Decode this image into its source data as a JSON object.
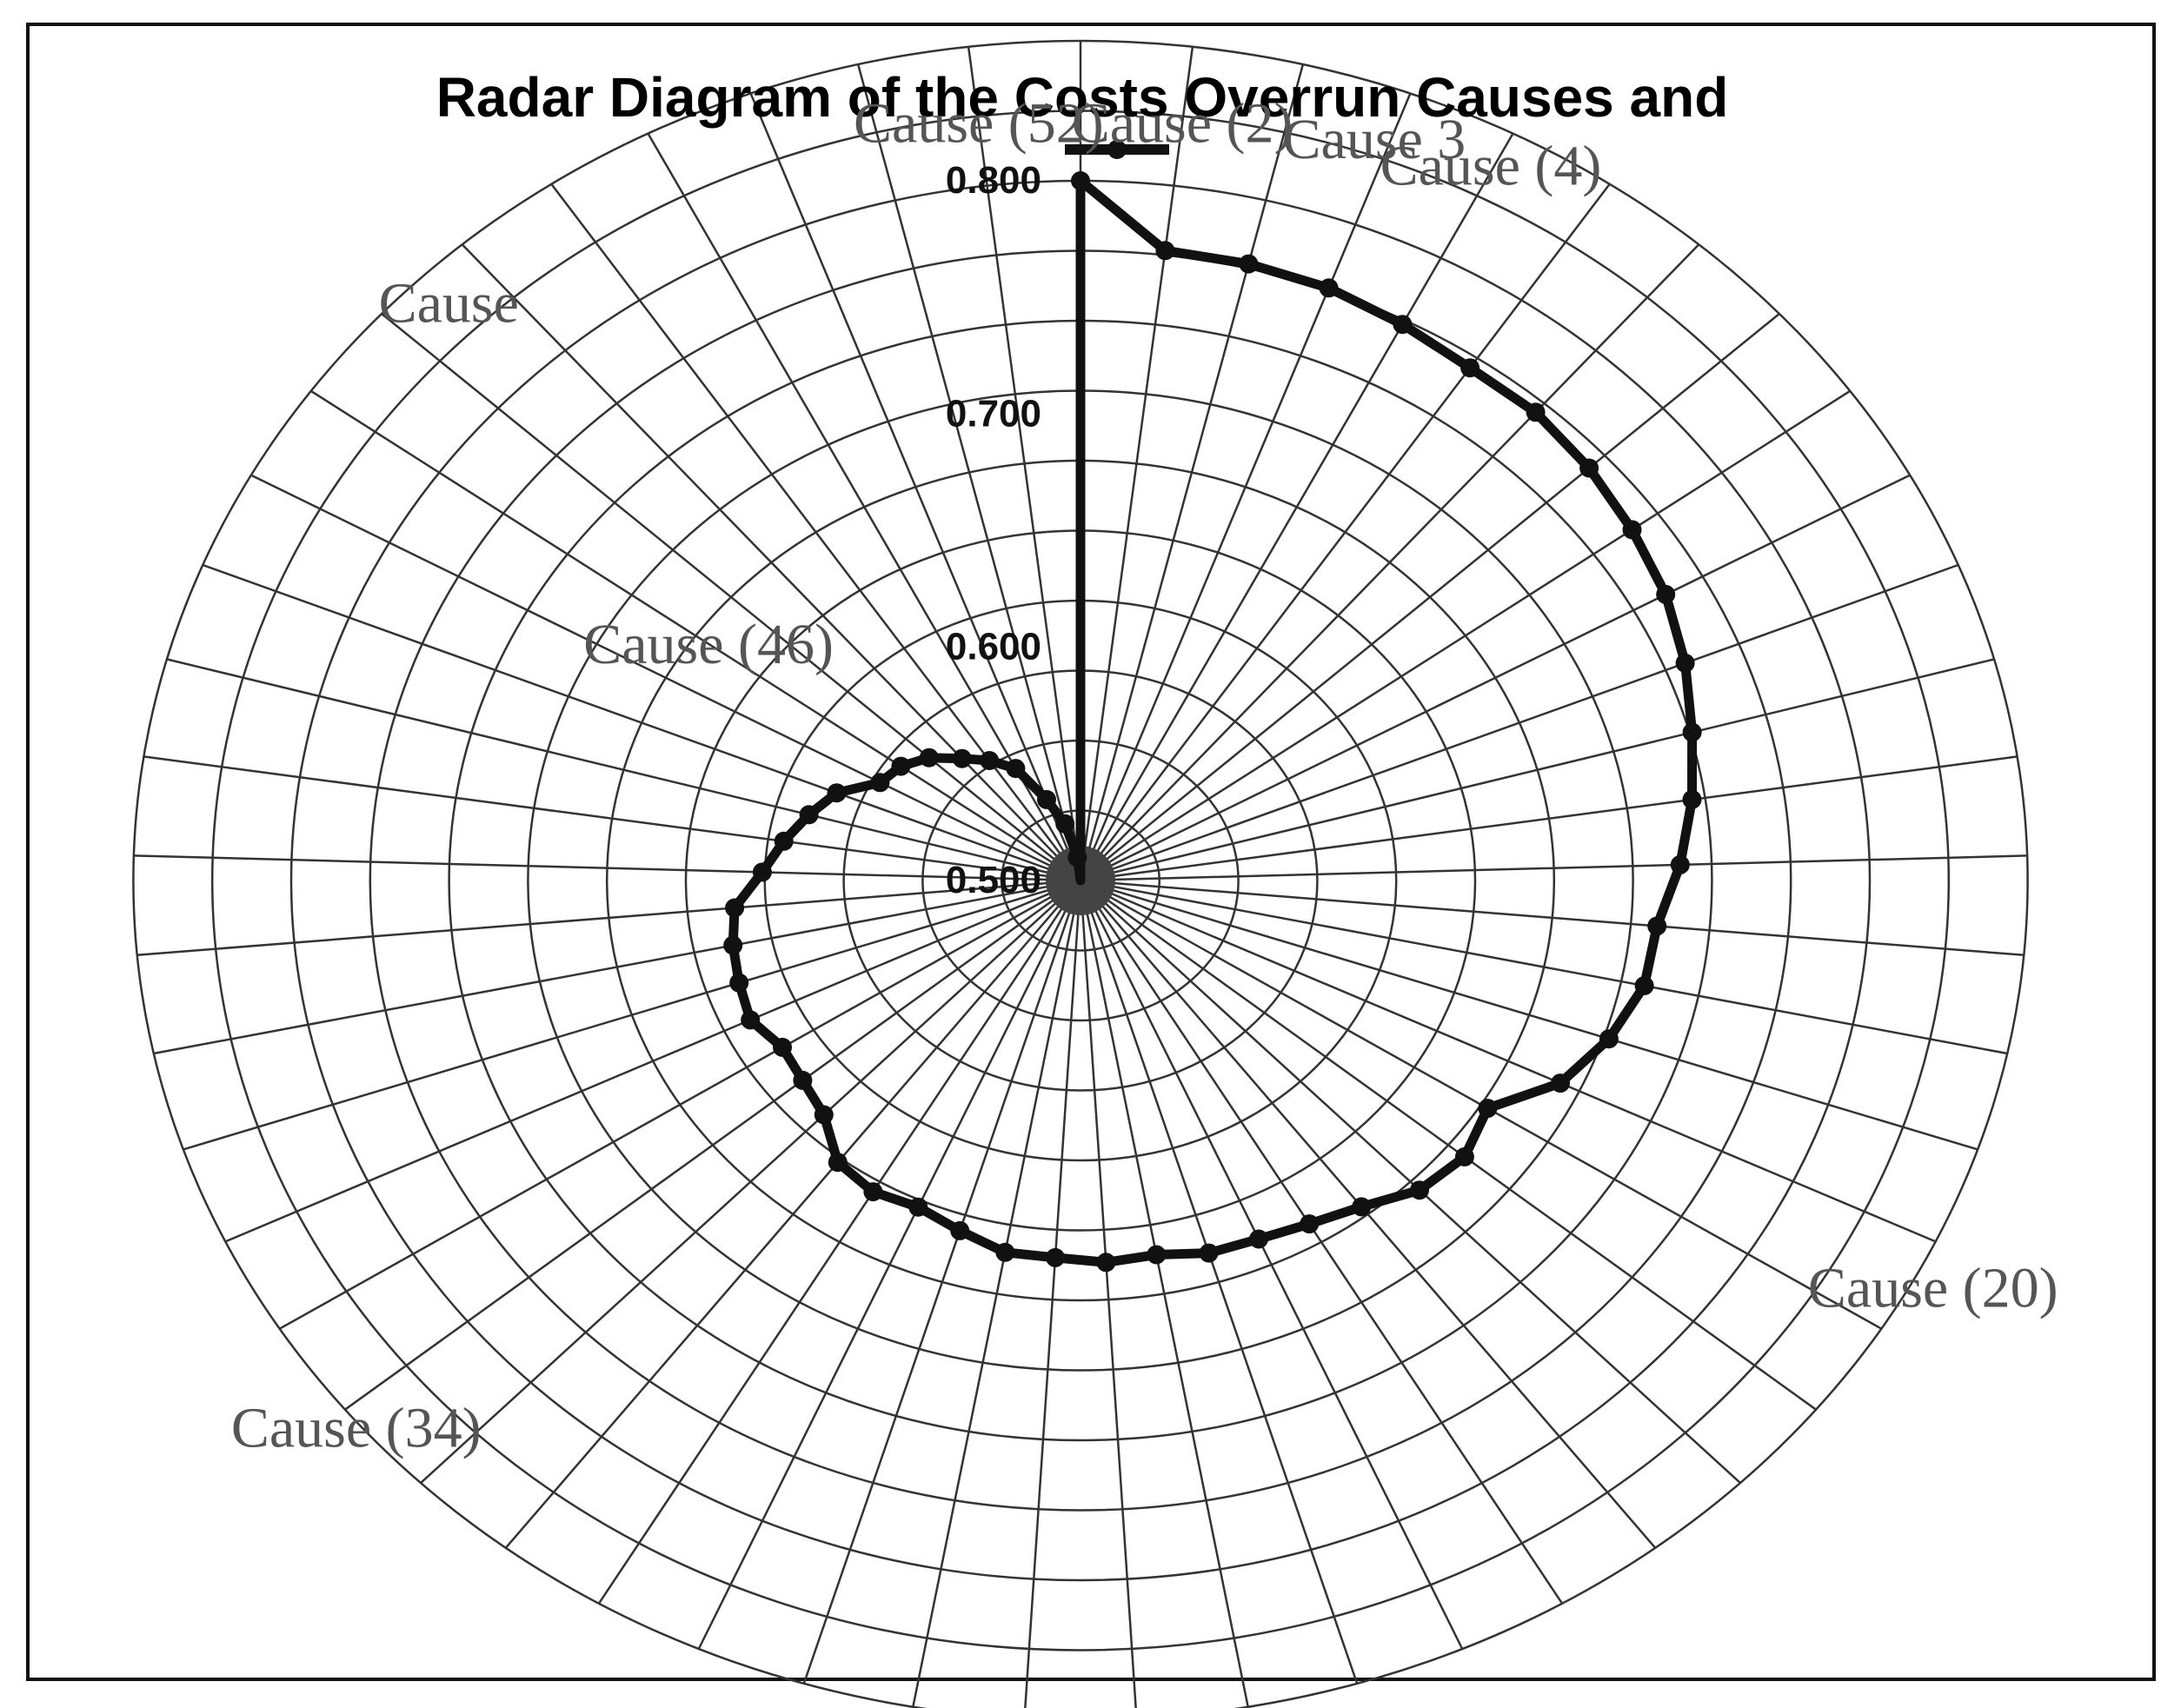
{
  "chart_data": {
    "type": "radar",
    "title": "Radar Diagram of the Costs Overrun Causes and",
    "r_axis": {
      "range": [
        0.5,
        0.8
      ],
      "tick_labels": [
        "0.500",
        "0.600",
        "0.700",
        "0.800"
      ]
    },
    "grid": true,
    "category_count": 53,
    "category_labels": [
      {
        "index": 1,
        "text": "Cause (2)"
      },
      {
        "index": 2,
        "text": "Cause 3"
      },
      {
        "index": 3,
        "text": "Cause (4)"
      },
      {
        "index": 18,
        "text": "Cause (20)"
      },
      {
        "index": 33,
        "text": "Cause (34)"
      },
      {
        "index": 45,
        "text": "Cause (46)"
      },
      {
        "index": 47,
        "text": "Cause"
      },
      {
        "index": 52,
        "text": "Cause (52)"
      }
    ],
    "series": [
      {
        "values": [
          0.8,
          0.772,
          0.772,
          0.771,
          0.768,
          0.765,
          0.765,
          0.762,
          0.758,
          0.754,
          0.748,
          0.741,
          0.735,
          0.728,
          0.72,
          0.719,
          0.712,
          0.702,
          0.683,
          0.688,
          0.685,
          0.676,
          0.671,
          0.668,
          0.667,
          0.663,
          0.664,
          0.662,
          0.662,
          0.657,
          0.653,
          0.655,
          0.652,
          0.64,
          0.636,
          0.634,
          0.639,
          0.637,
          0.635,
          0.632,
          0.621,
          0.614,
          0.607,
          0.6,
          0.587,
          0.584,
          0.578,
          0.569,
          0.562,
          0.554,
          0.537,
          0.525,
          0.51
        ]
      }
    ]
  },
  "colors": {
    "line": "#111111",
    "grid": "#333333",
    "label": "#555555",
    "center_disc": "#444444"
  }
}
